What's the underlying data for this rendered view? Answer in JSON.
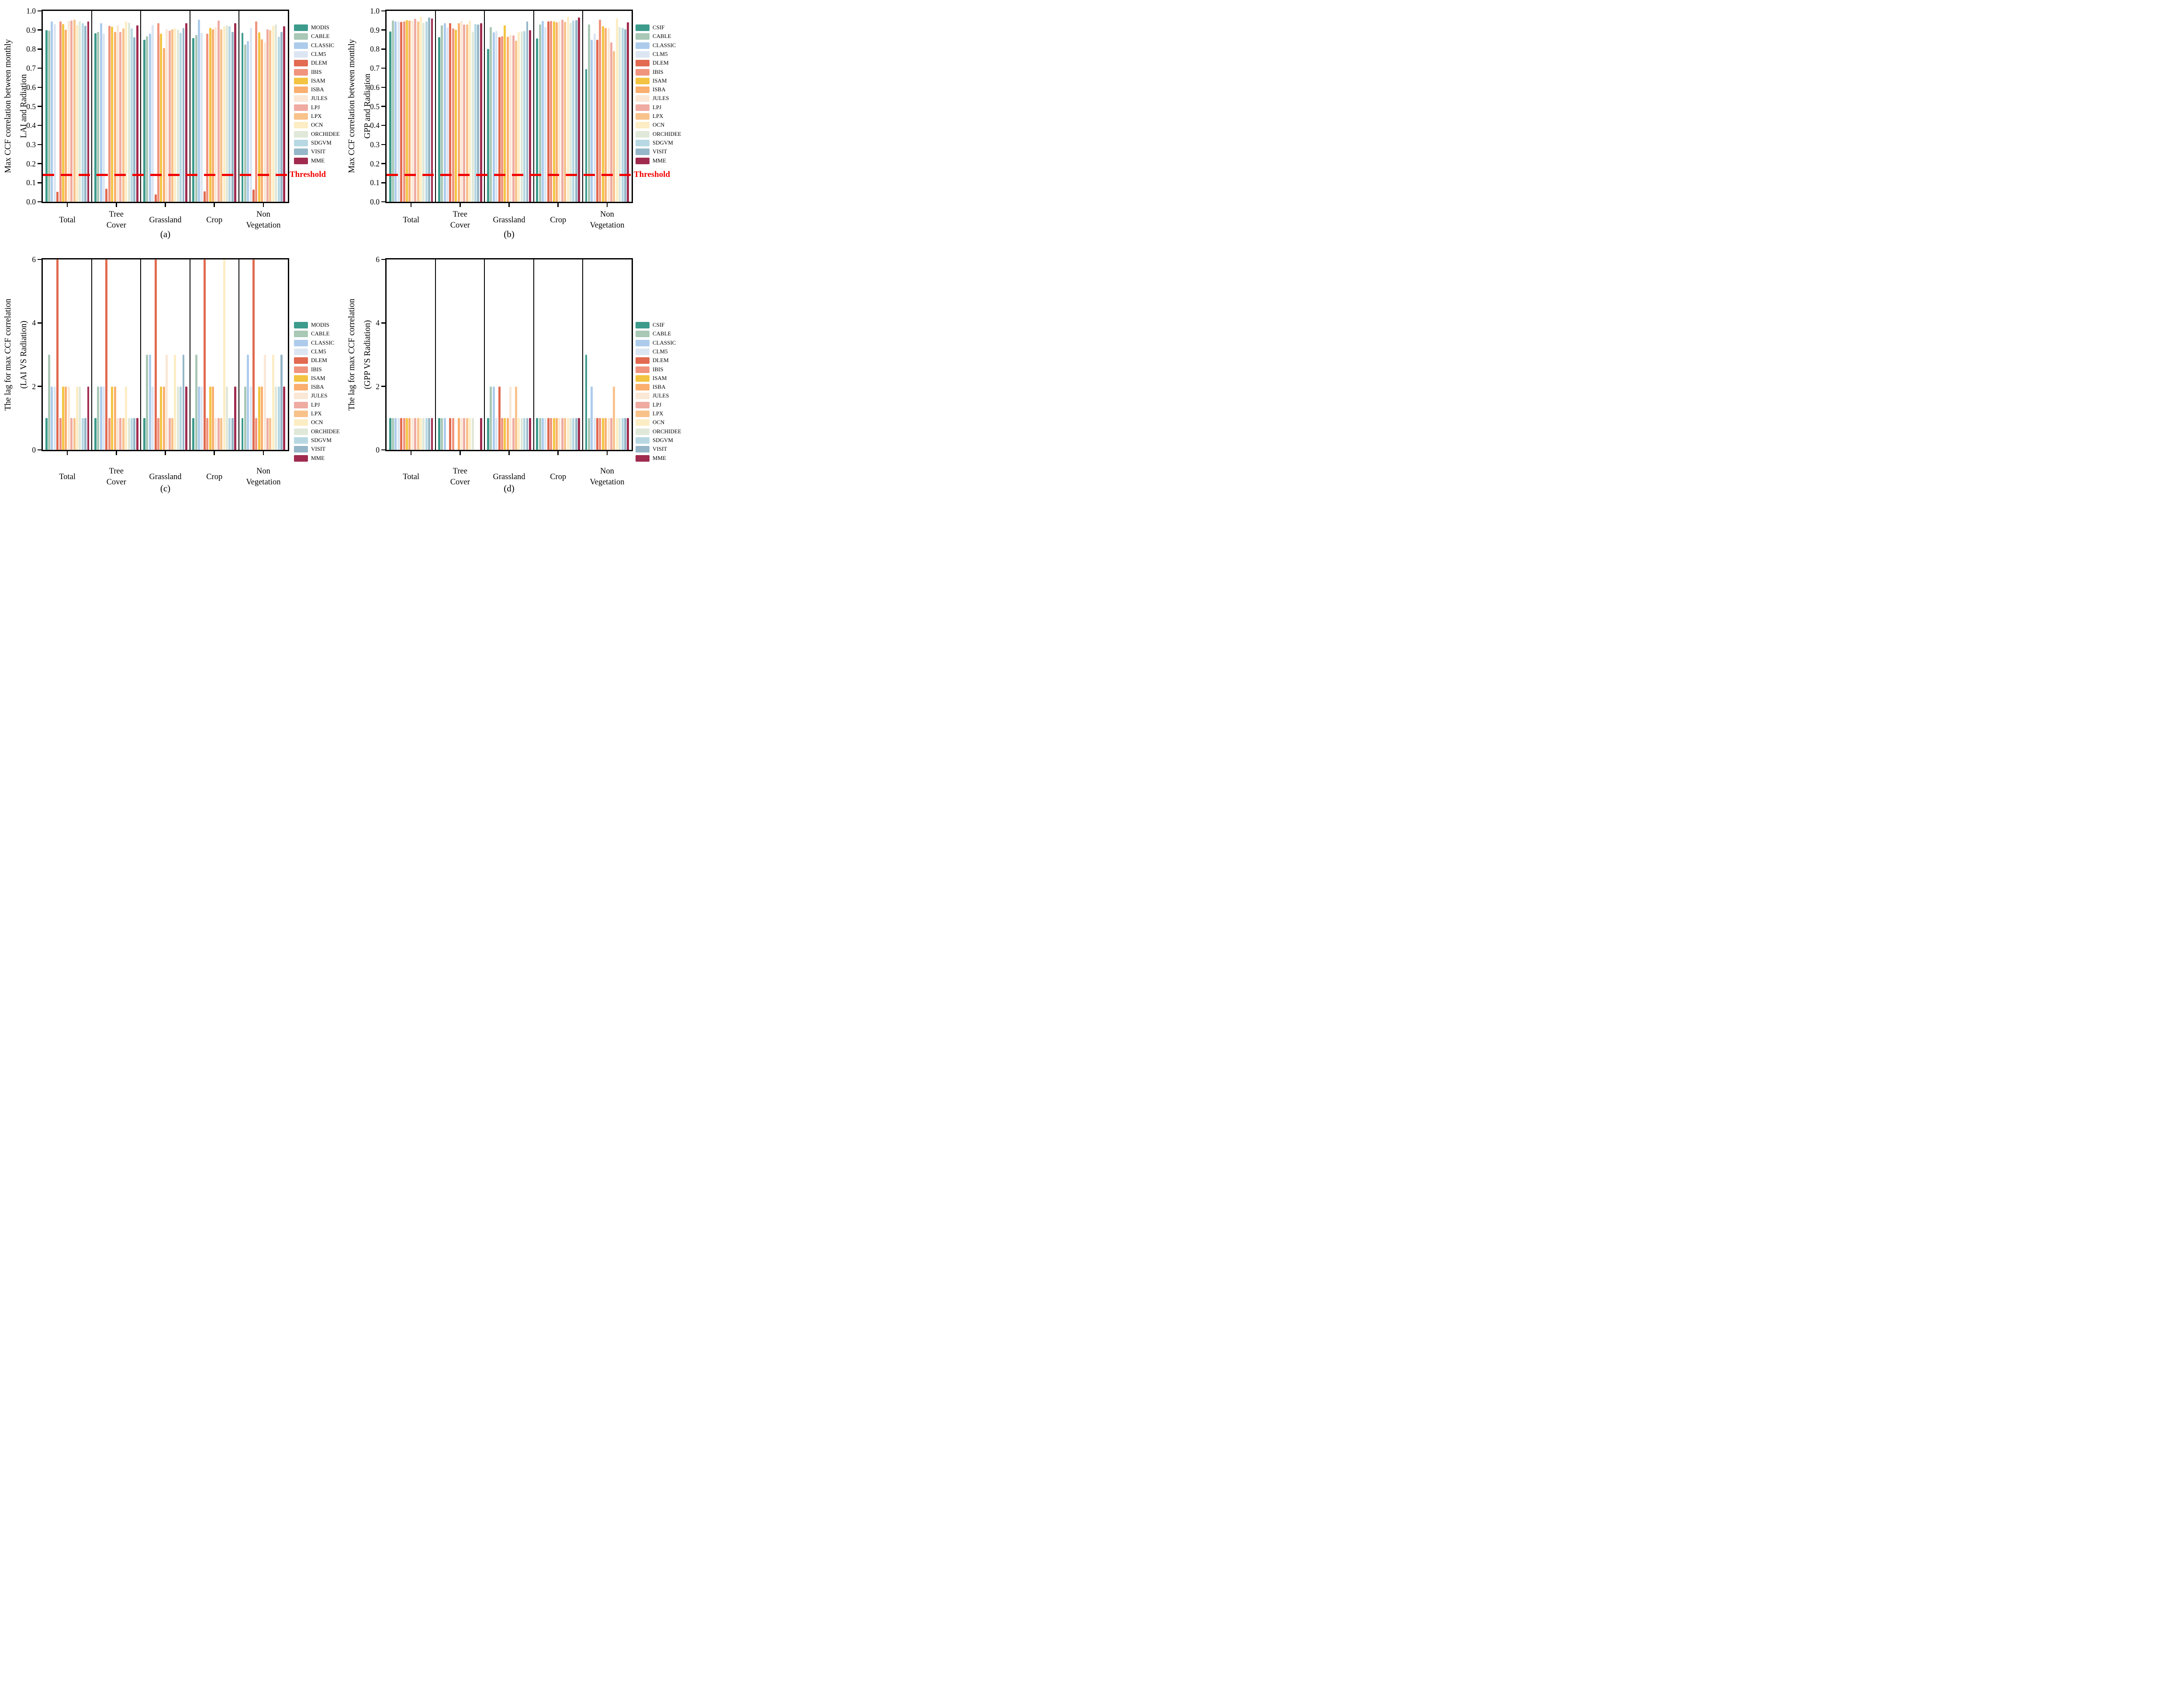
{
  "figure": {
    "background": "#ffffff",
    "threshold_label": "Threshold",
    "threshold_color": "#F20000",
    "frame_color": "#000000",
    "colors": [
      "#3D9B8C",
      "#A9C8B6",
      "#ADCCEC",
      "#DCE6F2",
      "#E16A50",
      "#F0947D",
      "#F3C442",
      "#FAAF6E",
      "#FAE7D5",
      "#EFABA2",
      "#F8C28B",
      "#FDEDC4",
      "#E0E8D9",
      "#B7D8E3",
      "#95B6C8",
      "#A02B4F"
    ]
  },
  "chart_data": [
    {
      "id": "a",
      "type": "bar",
      "caption": "(a)",
      "ylabel_lines": [
        "Max CCF correlation between monthly",
        "LAI and Radiation"
      ],
      "ylim": [
        0,
        1.0
      ],
      "yticks": [
        0,
        0.1,
        0.2,
        0.3,
        0.4,
        0.5,
        0.6,
        0.7,
        0.8,
        0.9,
        1.0
      ],
      "ytick_labels": [
        "0.0",
        "0.1",
        "0.2",
        "0.3",
        "0.4",
        "0.5",
        "0.6",
        "0.7",
        "0.8",
        "0.9",
        "1.0"
      ],
      "threshold": 0.14,
      "categories": [
        "Total",
        "Tree\nCover",
        "Grassland",
        "Crop",
        "Non\nVegetation"
      ],
      "series": [
        {
          "name": "MODIS",
          "values": [
            0.9,
            0.883,
            0.848,
            0.858,
            0.885
          ]
        },
        {
          "name": "CABLE",
          "values": [
            0.898,
            0.891,
            0.868,
            0.875,
            0.823
          ]
        },
        {
          "name": "CLASSIC",
          "values": [
            0.945,
            0.936,
            0.881,
            0.955,
            0.843
          ]
        },
        {
          "name": "CLM5",
          "values": [
            0.931,
            0.881,
            0.926,
            0.885,
            0.911
          ]
        },
        {
          "name": "DLEM",
          "values": [
            0.052,
            0.069,
            0.04,
            0.055,
            0.065
          ]
        },
        {
          "name": "IBIS",
          "values": [
            0.945,
            0.922,
            0.935,
            0.882,
            0.944
          ]
        },
        {
          "name": "ISAM",
          "values": [
            0.931,
            0.918,
            0.882,
            0.91,
            0.889
          ]
        },
        {
          "name": "ISBA",
          "values": [
            0.902,
            0.891,
            0.805,
            0.905,
            0.852
          ]
        },
        {
          "name": "JULES",
          "values": [
            0.948,
            0.925,
            0.905,
            0.915,
            0.836
          ]
        },
        {
          "name": "LPJ",
          "values": [
            0.95,
            0.891,
            0.898,
            0.95,
            0.904
          ]
        },
        {
          "name": "LPX",
          "values": [
            0.955,
            0.908,
            0.905,
            0.903,
            0.9
          ]
        },
        {
          "name": "OCN",
          "values": [
            0.927,
            0.945,
            0.908,
            0.92,
            0.922
          ]
        },
        {
          "name": "ORCHIDEE",
          "values": [
            0.945,
            0.938,
            0.902,
            0.925,
            0.928
          ]
        },
        {
          "name": "SDGVM",
          "values": [
            0.936,
            0.908,
            0.885,
            0.92,
            0.864
          ]
        },
        {
          "name": "VISIT",
          "values": [
            0.922,
            0.863,
            0.91,
            0.89,
            0.891
          ]
        },
        {
          "name": "MME",
          "values": [
            0.945,
            0.925,
            0.937,
            0.935,
            0.92
          ]
        }
      ]
    },
    {
      "id": "b",
      "type": "bar",
      "caption": "(b)",
      "ylabel_lines": [
        "Max CCF correlation between monthly",
        "GPP and Radiation"
      ],
      "ylim": [
        0,
        1.0
      ],
      "yticks": [
        0,
        0.1,
        0.2,
        0.3,
        0.4,
        0.5,
        0.6,
        0.7,
        0.8,
        0.9,
        1.0
      ],
      "ytick_labels": [
        "0.0",
        "0.1",
        "0.2",
        "0.3",
        "0.4",
        "0.5",
        "0.6",
        "0.7",
        "0.8",
        "0.9",
        "1.0"
      ],
      "threshold": 0.14,
      "categories": [
        "Total",
        "Tree\nCover",
        "Grassland",
        "Crop",
        "Non\nVegetation"
      ],
      "series": [
        {
          "name": "CSIF",
          "values": [
            0.893,
            0.862,
            0.8,
            0.856,
            0.695
          ]
        },
        {
          "name": "CABLE",
          "values": [
            0.95,
            0.925,
            0.915,
            0.93,
            0.93
          ]
        },
        {
          "name": "CLASSIC",
          "values": [
            0.945,
            0.937,
            0.888,
            0.948,
            0.85
          ]
        },
        {
          "name": "CLM5",
          "values": [
            0.946,
            0.912,
            0.895,
            0.915,
            0.88
          ]
        },
        {
          "name": "DLEM",
          "values": [
            0.942,
            0.935,
            0.862,
            0.945,
            0.85
          ]
        },
        {
          "name": "IBIS",
          "values": [
            0.945,
            0.908,
            0.868,
            0.948,
            0.955
          ]
        },
        {
          "name": "ISAM",
          "values": [
            0.951,
            0.902,
            0.925,
            0.945,
            0.92
          ]
        },
        {
          "name": "ISBA",
          "values": [
            0.95,
            0.935,
            0.865,
            0.94,
            0.91
          ]
        },
        {
          "name": "JULES",
          "values": [
            0.948,
            0.95,
            0.875,
            0.945,
            0.91
          ]
        },
        {
          "name": "LPJ",
          "values": [
            0.958,
            0.928,
            0.872,
            0.955,
            0.835
          ]
        },
        {
          "name": "LPX",
          "values": [
            0.946,
            0.93,
            0.845,
            0.943,
            0.79
          ]
        },
        {
          "name": "OCN",
          "values": [
            0.97,
            0.95,
            0.89,
            0.97,
            0.96
          ]
        },
        {
          "name": "ORCHIDEE",
          "values": [
            0.938,
            0.893,
            0.893,
            0.938,
            0.915
          ]
        },
        {
          "name": "SDGVM",
          "values": [
            0.945,
            0.932,
            0.895,
            0.95,
            0.91
          ]
        },
        {
          "name": "VISIT",
          "values": [
            0.965,
            0.928,
            0.945,
            0.952,
            0.905
          ]
        },
        {
          "name": "MME",
          "values": [
            0.962,
            0.937,
            0.9,
            0.965,
            0.94
          ]
        }
      ]
    },
    {
      "id": "c",
      "type": "bar",
      "caption": "(c)",
      "ylabel_lines": [
        "The lag for max CCF correlation",
        "(LAI VS Radiation)"
      ],
      "ylim": [
        0,
        6
      ],
      "yticks": [
        0,
        2,
        4,
        6
      ],
      "ytick_labels": [
        "0",
        "2",
        "4",
        "6"
      ],
      "threshold": null,
      "categories": [
        "Total",
        "Tree\nCover",
        "Grassland",
        "Crop",
        "Non\nVegetation"
      ],
      "series": [
        {
          "name": "MODIS",
          "values": [
            1,
            1,
            1,
            1,
            1
          ]
        },
        {
          "name": "CABLE",
          "values": [
            3,
            2,
            3,
            3,
            2
          ]
        },
        {
          "name": "CLASSIC",
          "values": [
            2,
            2,
            3,
            2,
            3
          ]
        },
        {
          "name": "CLM5",
          "values": [
            2,
            2,
            2,
            2,
            2
          ]
        },
        {
          "name": "DLEM",
          "values": [
            6,
            6,
            6,
            6,
            6
          ]
        },
        {
          "name": "IBIS",
          "values": [
            1,
            1,
            1,
            1,
            1
          ]
        },
        {
          "name": "ISAM",
          "values": [
            2,
            2,
            2,
            2,
            2
          ]
        },
        {
          "name": "ISBA",
          "values": [
            2,
            2,
            2,
            2,
            2
          ]
        },
        {
          "name": "JULES",
          "values": [
            2,
            1,
            3,
            1,
            3
          ]
        },
        {
          "name": "LPJ",
          "values": [
            1,
            1,
            1,
            1,
            1
          ]
        },
        {
          "name": "LPX",
          "values": [
            1,
            1,
            1,
            1,
            1
          ]
        },
        {
          "name": "OCN",
          "values": [
            2,
            2,
            3,
            6,
            3
          ]
        },
        {
          "name": "ORCHIDEE",
          "values": [
            2,
            1,
            2,
            2,
            2
          ]
        },
        {
          "name": "SDGVM",
          "values": [
            1,
            1,
            2,
            1,
            2
          ]
        },
        {
          "name": "VISIT",
          "values": [
            1,
            1,
            3,
            1,
            3
          ]
        },
        {
          "name": "MME",
          "values": [
            2,
            1,
            2,
            2,
            2
          ]
        }
      ]
    },
    {
      "id": "d",
      "type": "bar",
      "caption": "(d)",
      "ylabel_lines": [
        "The lag for max CCF correlation",
        "(GPP VS Radiation)"
      ],
      "ylim": [
        0,
        6
      ],
      "yticks": [
        0,
        2,
        4,
        6
      ],
      "ytick_labels": [
        "0",
        "2",
        "4",
        "6"
      ],
      "threshold": null,
      "categories": [
        "Total",
        "Tree\nCover",
        "Grassland",
        "Crop",
        "Non\nVegetation"
      ],
      "series": [
        {
          "name": "CSIF",
          "values": [
            1,
            1,
            1,
            1,
            3
          ]
        },
        {
          "name": "CABLE",
          "values": [
            1,
            1,
            2,
            1,
            1
          ]
        },
        {
          "name": "CLASSIC",
          "values": [
            1,
            1,
            2,
            1,
            2
          ]
        },
        {
          "name": "CLM5",
          "values": [
            1,
            0,
            1,
            1,
            1
          ]
        },
        {
          "name": "DLEM",
          "values": [
            1,
            1,
            2,
            1,
            1
          ]
        },
        {
          "name": "IBIS",
          "values": [
            1,
            1,
            1,
            1,
            1
          ]
        },
        {
          "name": "ISAM",
          "values": [
            1,
            0,
            1,
            1,
            1
          ]
        },
        {
          "name": "ISBA",
          "values": [
            1,
            1,
            1,
            1,
            1
          ]
        },
        {
          "name": "JULES",
          "values": [
            1,
            1,
            2,
            1,
            1
          ]
        },
        {
          "name": "LPJ",
          "values": [
            1,
            1,
            1,
            1,
            1
          ]
        },
        {
          "name": "LPX",
          "values": [
            1,
            1,
            2,
            1,
            2
          ]
        },
        {
          "name": "OCN",
          "values": [
            1,
            1,
            1,
            1,
            1
          ]
        },
        {
          "name": "ORCHIDEE",
          "values": [
            1,
            1,
            1,
            1,
            1
          ]
        },
        {
          "name": "SDGVM",
          "values": [
            1,
            0,
            1,
            1,
            1
          ]
        },
        {
          "name": "VISIT",
          "values": [
            1,
            0,
            1,
            1,
            1
          ]
        },
        {
          "name": "MME",
          "values": [
            1,
            1,
            1,
            1,
            1
          ]
        }
      ]
    }
  ]
}
